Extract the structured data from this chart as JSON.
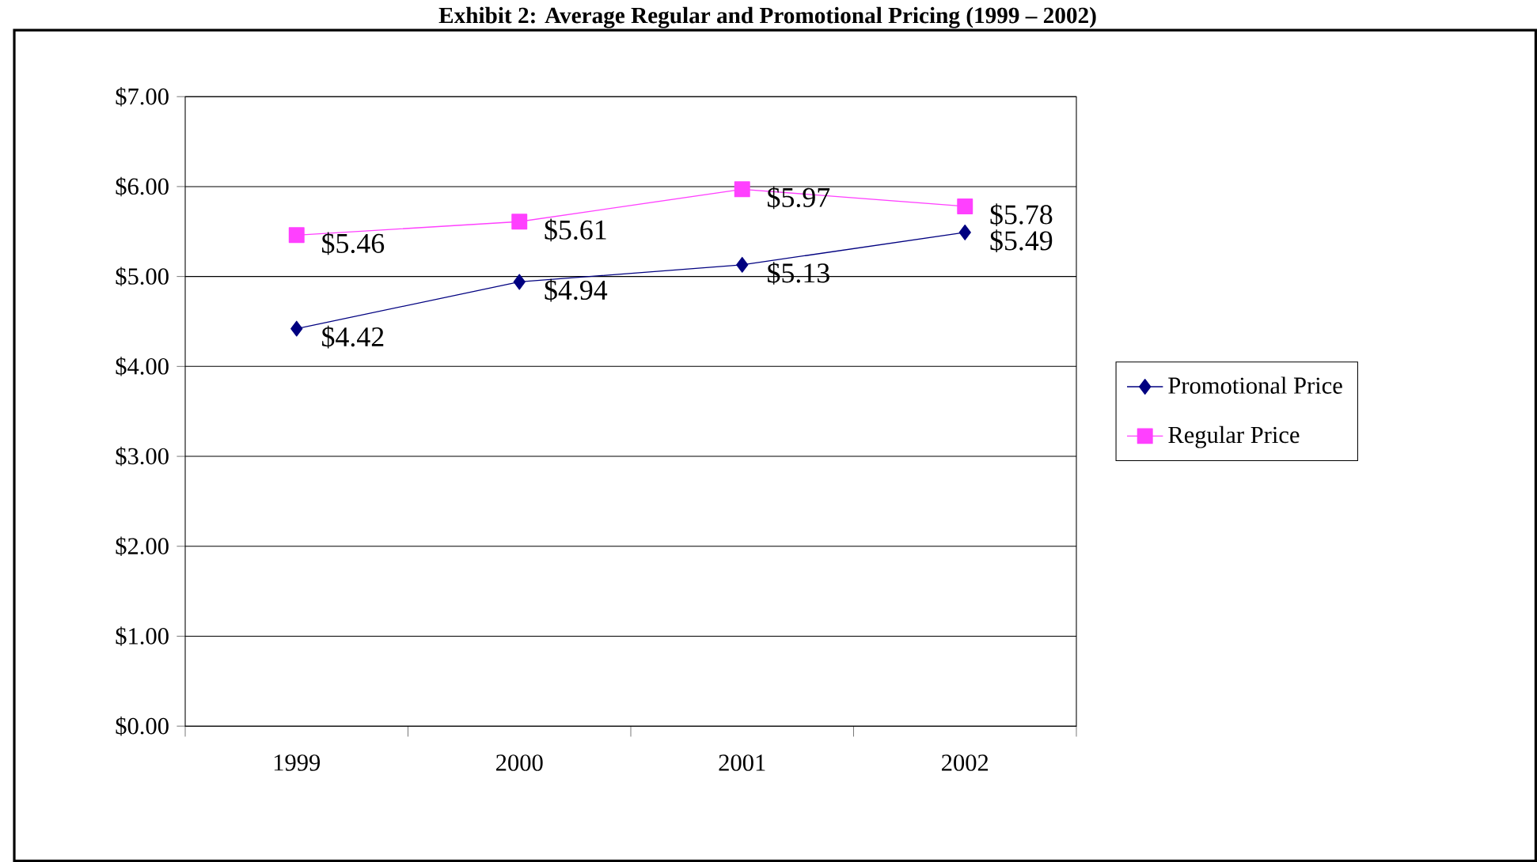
{
  "chart_data": {
    "type": "line",
    "title": "Exhibit 2: Average Regular and Promotional Pricing (1999 – 2002)",
    "categories": [
      "1999",
      "2000",
      "2001",
      "2002"
    ],
    "series": [
      {
        "name": "Promotional Price",
        "color": "#000080",
        "marker": "diamond",
        "values": [
          4.42,
          4.94,
          5.13,
          5.49
        ],
        "value_labels": [
          "$4.42",
          "$4.94",
          "$5.13",
          "$5.49"
        ]
      },
      {
        "name": "Regular Price",
        "color": "#ff40ff",
        "marker": "square",
        "values": [
          5.46,
          5.61,
          5.97,
          5.78
        ],
        "value_labels": [
          "$5.46",
          "$5.61",
          "$5.97",
          "$5.78"
        ]
      }
    ],
    "ylim": [
      0,
      7
    ],
    "yticks": [
      {
        "value": 0,
        "label": "$0.00"
      },
      {
        "value": 1,
        "label": "$1.00"
      },
      {
        "value": 2,
        "label": "$2.00"
      },
      {
        "value": 3,
        "label": "$3.00"
      },
      {
        "value": 4,
        "label": "$4.00"
      },
      {
        "value": 5,
        "label": "$5.00"
      },
      {
        "value": 6,
        "label": "$6.00"
      },
      {
        "value": 7,
        "label": "$7.00"
      }
    ],
    "grid": "y",
    "legend": "right"
  }
}
